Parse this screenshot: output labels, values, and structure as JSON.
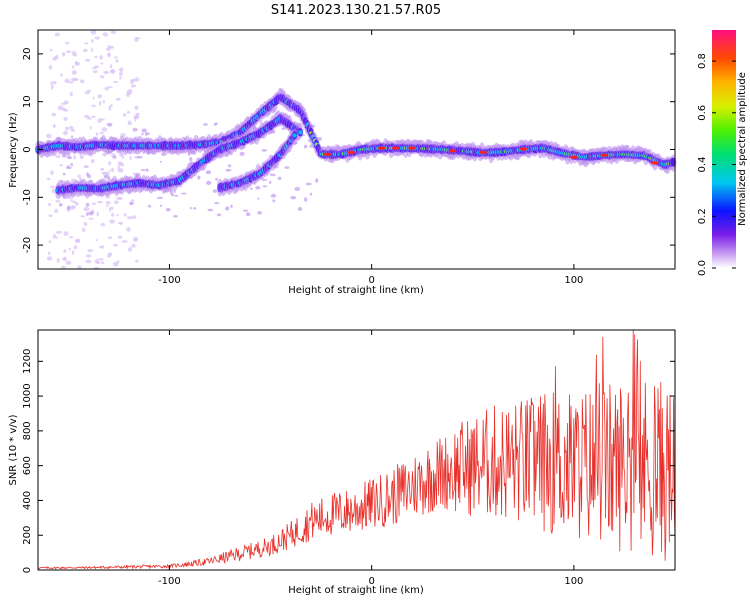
{
  "title": "S141.2023.130.21.57.R05",
  "chart_data": [
    {
      "type": "heatmap",
      "xlabel": "Height of straight line (km)",
      "ylabel": "Frequency (Hz)",
      "xlim": [
        -165,
        150
      ],
      "ylim": [
        -25,
        25
      ],
      "x_ticks": [
        -100,
        0,
        100
      ],
      "y_ticks": [
        -20,
        -10,
        0,
        10,
        20
      ],
      "colorbar": {
        "label": "Normalized spectral amplitude",
        "ticks": [
          0.0,
          0.2,
          0.4,
          0.6,
          0.8
        ],
        "range": [
          0.0,
          0.92
        ]
      },
      "traces": [
        {
          "x": [
            -165,
            -155,
            -145,
            -135,
            -125,
            -115,
            -105,
            -95,
            -85,
            -75,
            -65,
            -55,
            -45,
            -35,
            -25,
            -15,
            -5,
            5,
            15,
            25,
            35,
            45,
            55,
            65,
            75,
            85,
            95,
            105,
            115,
            125,
            135,
            145,
            150
          ],
          "y": [
            0,
            0.8,
            0.5,
            1.0,
            0.8,
            0.8,
            0.8,
            0.8,
            1.0,
            1.5,
            3.5,
            7.5,
            11.0,
            8.0,
            -1.0,
            -1.0,
            0,
            0.3,
            0.3,
            0.2,
            0,
            -0.3,
            -0.7,
            -0.5,
            0,
            0.3,
            -0.8,
            -1.6,
            -1.2,
            -1.0,
            -1.3,
            -3.2,
            -2.5
          ]
        },
        {
          "x": [
            -155,
            -145,
            -135,
            -125,
            -115,
            -105,
            -95,
            -85,
            -75,
            -65,
            -55,
            -45,
            -35
          ],
          "y": [
            -8.5,
            -8.0,
            -8.2,
            -7.5,
            -7.0,
            -7.5,
            -6.5,
            -3.0,
            0.0,
            1.5,
            3.5,
            6.5,
            3.5
          ]
        },
        {
          "x": [
            -75,
            -65,
            -55,
            -45,
            -38
          ],
          "y": [
            -8.0,
            -7.0,
            -5.0,
            -1.0,
            3.0
          ]
        }
      ]
    },
    {
      "type": "line",
      "xlabel": "Height of straight line (km)",
      "ylabel": "SNR (10 * v/v)",
      "xlim": [
        -165,
        150
      ],
      "ylim": [
        0,
        1380
      ],
      "x_ticks": [
        -100,
        0,
        100
      ],
      "y_ticks": [
        0,
        200,
        400,
        600,
        800,
        1000,
        1200
      ],
      "color": "#e8302a",
      "x": [
        -165,
        -140,
        -120,
        -100,
        -90,
        -80,
        -70,
        -60,
        -50,
        -40,
        -30,
        -20,
        -10,
        0,
        10,
        20,
        30,
        40,
        50,
        60,
        70,
        80,
        90,
        100,
        110,
        120,
        130,
        140,
        150
      ],
      "y": [
        12,
        14,
        18,
        22,
        35,
        50,
        80,
        110,
        140,
        200,
        280,
        320,
        340,
        380,
        420,
        480,
        540,
        580,
        600,
        620,
        620,
        620,
        620,
        600,
        610,
        600,
        620,
        580,
        560
      ]
    }
  ]
}
